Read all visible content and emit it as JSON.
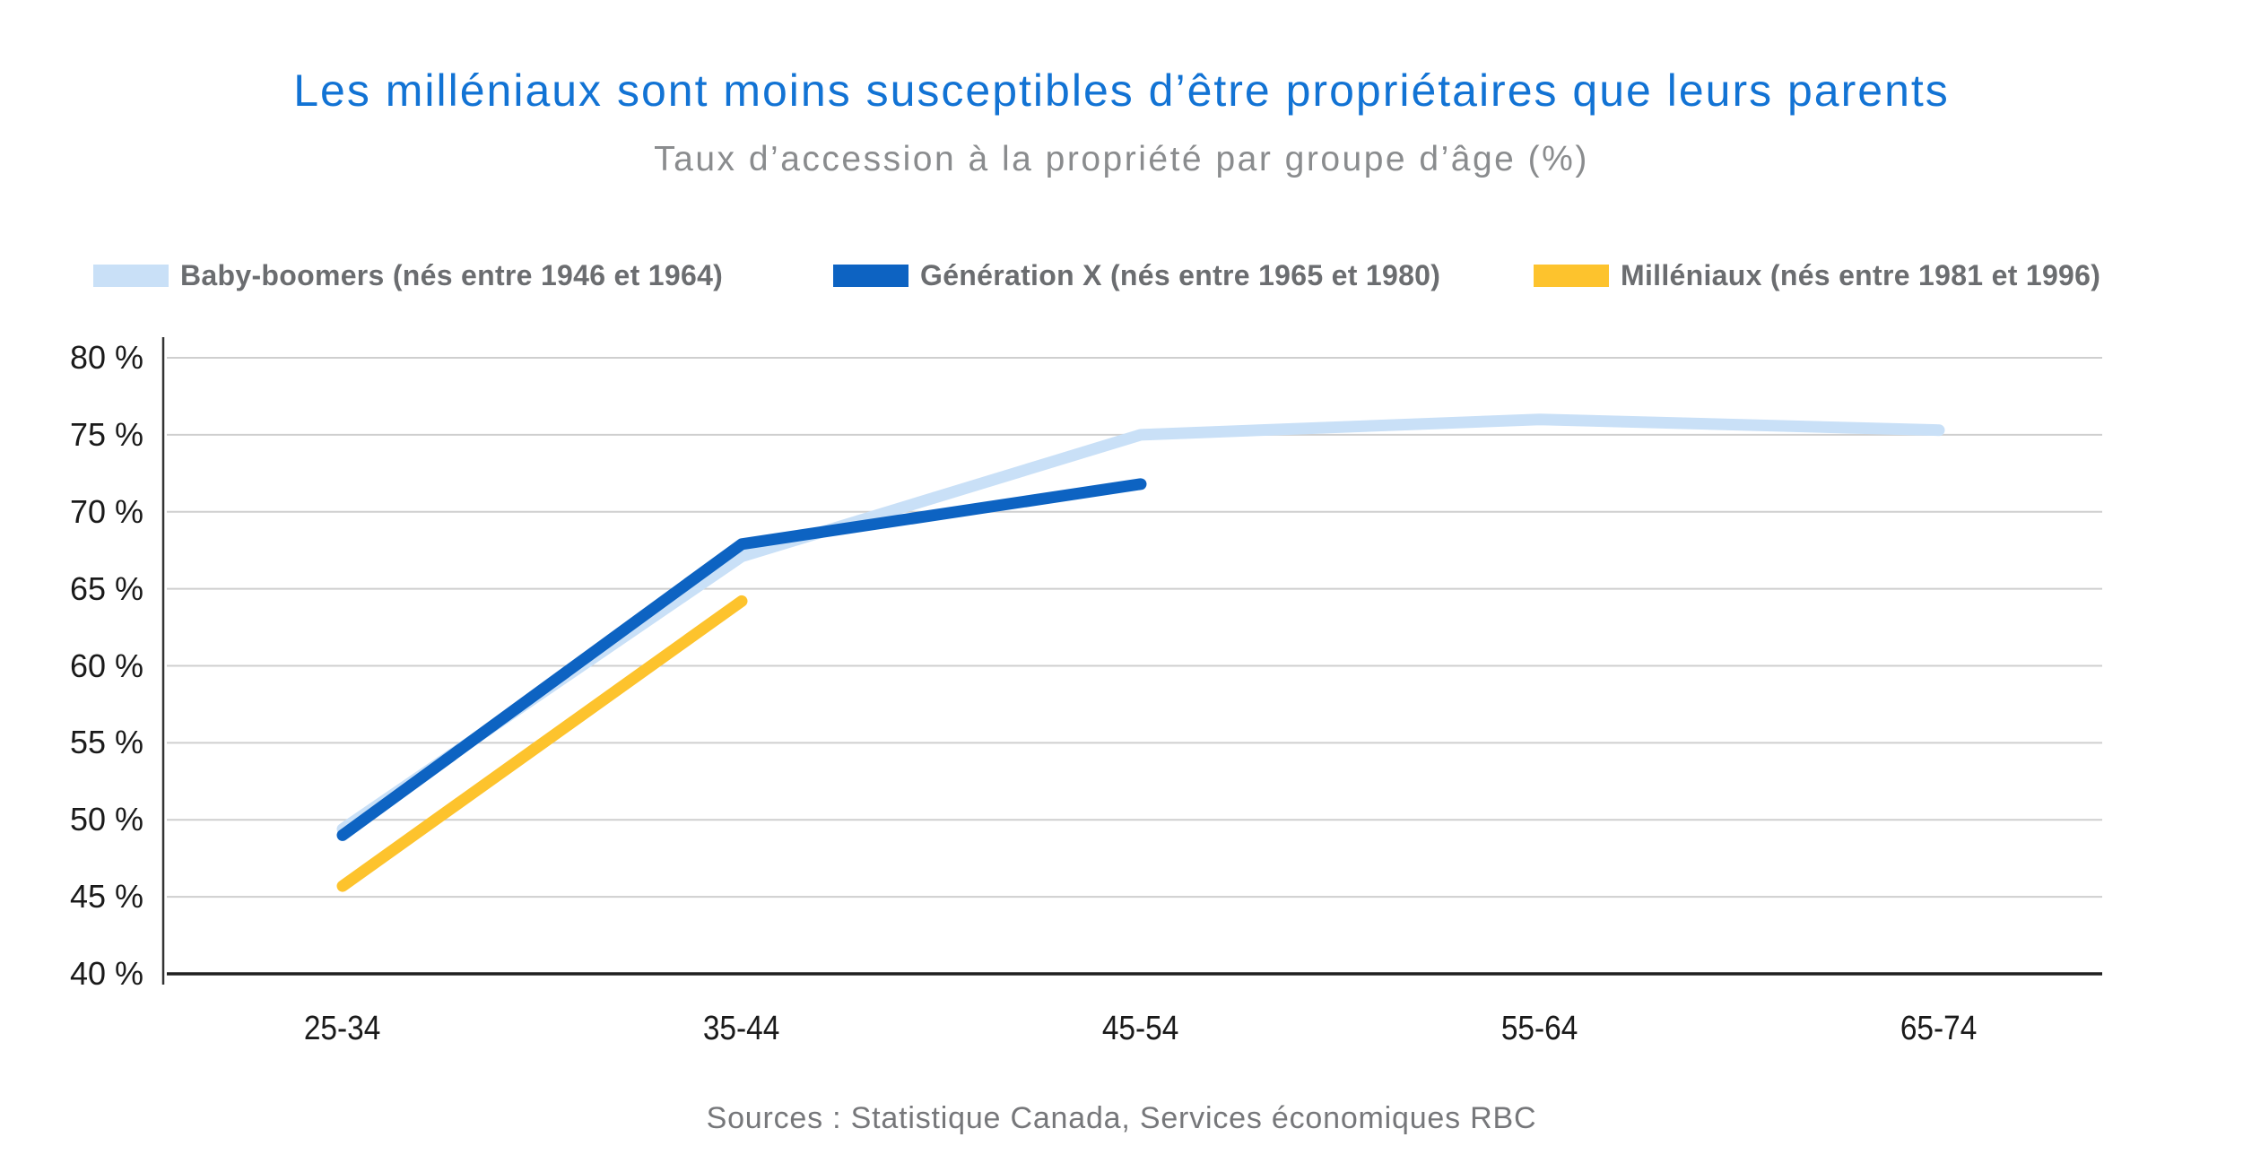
{
  "chart_data": {
    "type": "line",
    "title": "Les milléniaux sont moins susceptibles d’être propriétaires que leurs parents",
    "subtitle": "Taux d’accession à la propriété par groupe d’âge (%)",
    "categories": [
      "25-34",
      "35-44",
      "45-54",
      "55-64",
      "65-74"
    ],
    "series": [
      {
        "name": "Baby-boomers (nés entre 1946 et 1964)",
        "color": "#C9E0F7",
        "values": [
          49.4,
          67.1,
          75.0,
          76.0,
          75.3
        ]
      },
      {
        "name": "Génération X (nés entre 1965 et 1980)",
        "color": "#0D63C2",
        "values": [
          49.0,
          67.9,
          71.8,
          null,
          null
        ]
      },
      {
        "name": "Milléniaux (nés entre 1981 et 1996)",
        "color": "#FDC32D",
        "values": [
          45.7,
          64.2,
          null,
          null,
          null
        ]
      }
    ],
    "yticks": [
      80,
      75,
      70,
      65,
      60,
      55,
      50,
      45,
      40
    ],
    "ytick_labels": [
      "80 %",
      "75 %",
      "70 %",
      "65 %",
      "60 %",
      "55 %",
      "50 %",
      "45 %",
      "40 %"
    ],
    "ylim": [
      40,
      80
    ],
    "xlabel": "",
    "ylabel": "",
    "grid": true,
    "legend_position": "top"
  },
  "source": "Sources : Statistique Canada, Services économiques RBC",
  "colors": {
    "title": "#1273D4",
    "subtitle": "#8A8C8E",
    "legend_text": "#6B6D70",
    "axis_text": "#1A1A1A",
    "gridline": "#CFCFCF",
    "axis_line": "#1F1F1F",
    "source_text": "#76777A"
  }
}
